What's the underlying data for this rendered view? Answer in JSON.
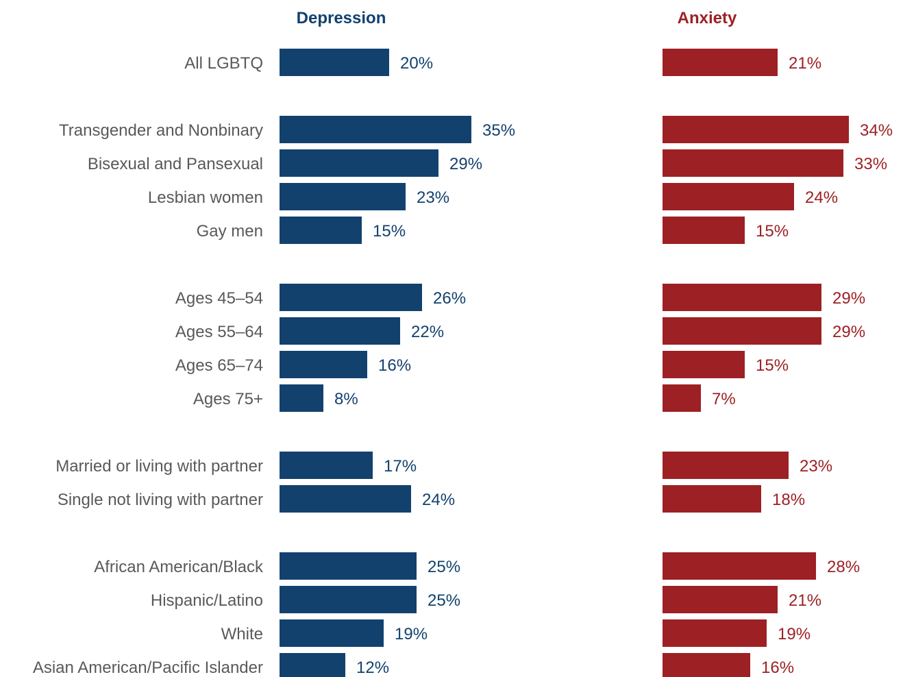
{
  "chart_data": {
    "type": "bar",
    "orientation": "horizontal",
    "categories": [
      "All LGBTQ",
      "Transgender and Nonbinary",
      "Bisexual and Pansexual",
      "Lesbian women",
      "Gay men",
      "Ages 45–54",
      "Ages 55–64",
      "Ages 65–74",
      "Ages 75+",
      "Married or living with partner",
      "Single not living with partner",
      "African American/Black",
      "Hispanic/Latino",
      "White",
      "Asian American/Pacific Islander"
    ],
    "groups": [
      [
        0
      ],
      [
        1,
        2,
        3,
        4
      ],
      [
        5,
        6,
        7,
        8
      ],
      [
        9,
        10
      ],
      [
        11,
        12,
        13,
        14
      ]
    ],
    "series": [
      {
        "name": "Depression",
        "color": "#12416e",
        "values": [
          20,
          35,
          29,
          23,
          15,
          26,
          22,
          16,
          8,
          17,
          24,
          25,
          25,
          19,
          12
        ],
        "labels": [
          "20%",
          "35%",
          "29%",
          "23%",
          "15%",
          "26%",
          "22%",
          "16%",
          "8%",
          "17%",
          "24%",
          "25%",
          "25%",
          "19%",
          "12%"
        ]
      },
      {
        "name": "Anxiety",
        "color": "#9d2024",
        "values": [
          21,
          34,
          33,
          24,
          15,
          29,
          29,
          15,
          7,
          23,
          18,
          28,
          21,
          19,
          16
        ],
        "labels": [
          "21%",
          "34%",
          "33%",
          "24%",
          "15%",
          "29%",
          "29%",
          "15%",
          "7%",
          "23%",
          "18%",
          "28%",
          "21%",
          "19%",
          "16%"
        ]
      }
    ],
    "unit": "%",
    "xlim": [
      0,
      40
    ],
    "grid": false,
    "legend": "none",
    "category_label_color": "#595959"
  }
}
